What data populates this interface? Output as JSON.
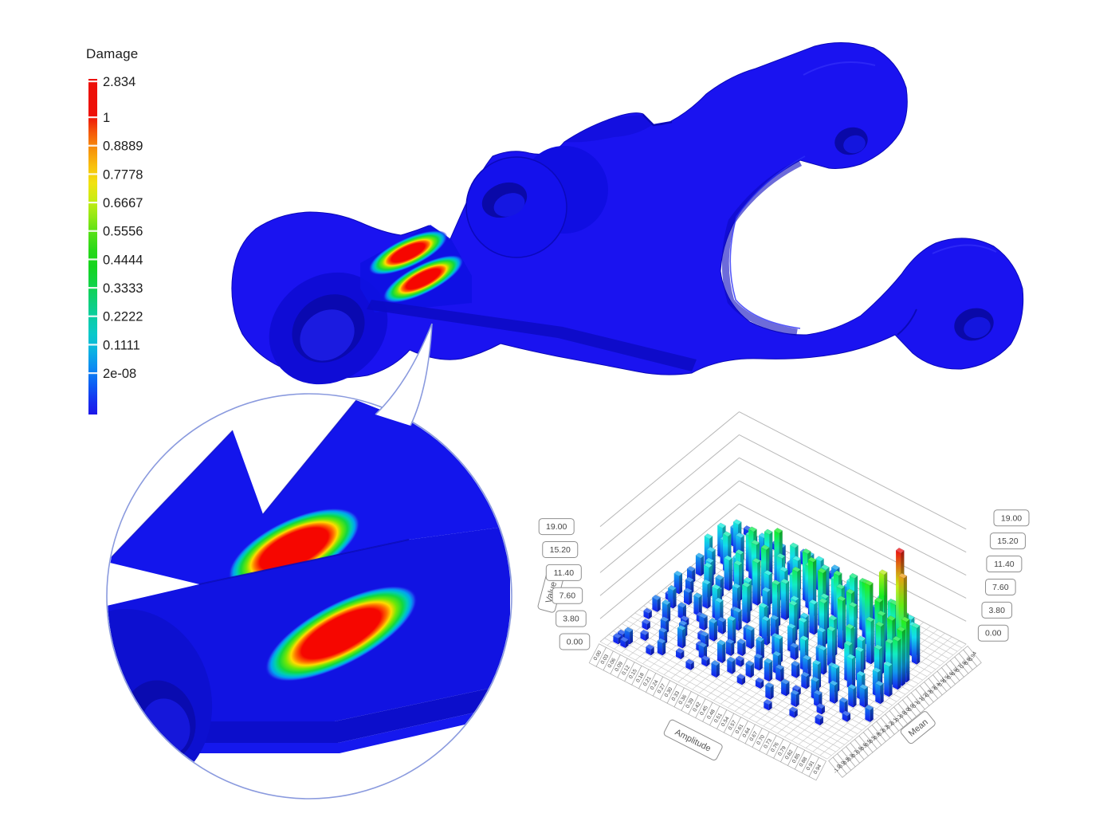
{
  "app": {
    "background": "#ffffff",
    "description_visible_elements": "FEA fatigue damage result: colorbar legend, 3D control-arm model with damage hotspots, circular zoom callout, 3D rainflow histogram"
  },
  "legend": {
    "title": "Damage",
    "ticks": [
      "2.834",
      "1",
      "0.8889",
      "0.7778",
      "0.6667",
      "0.5556",
      "0.4444",
      "0.3333",
      "0.2222",
      "0.1111",
      "2e-08"
    ],
    "gradient_stops": [
      [
        "0.00",
        "#ec1008"
      ],
      [
        "0.11",
        "#ee1008"
      ],
      [
        "0.16",
        "#f55a09"
      ],
      [
        "0.21",
        "#f7920a"
      ],
      [
        "0.26",
        "#f8c00d"
      ],
      [
        "0.31",
        "#f2e210"
      ],
      [
        "0.36",
        "#c9ec12"
      ],
      [
        "0.41",
        "#93e814"
      ],
      [
        "0.46",
        "#54e016"
      ],
      [
        "0.51",
        "#28d818"
      ],
      [
        "0.56",
        "#14d41e"
      ],
      [
        "0.61",
        "#12d345"
      ],
      [
        "0.66",
        "#0ed077"
      ],
      [
        "0.71",
        "#0bcda4"
      ],
      [
        "0.76",
        "#09c9c9"
      ],
      [
        "0.81",
        "#0ab2e2"
      ],
      [
        "0.86",
        "#0b8cf2"
      ],
      [
        "0.91",
        "#0c5ef4"
      ],
      [
        "0.96",
        "#1530f0"
      ],
      [
        "1.00",
        "#1d16e8"
      ]
    ]
  },
  "model": {
    "body_color": "#1a13f0",
    "shade_color": "#0d0bc4",
    "hotspot_core_color": "#f60600"
  },
  "callout": {
    "border_color": "#8a9ade"
  },
  "chart_data": {
    "type": "bar",
    "subtype": "3d-histogram",
    "title": "",
    "xlabel": "Amplitude",
    "ylabel": "Mean",
    "zlabel": "Value",
    "z_ticks": [
      "0.00",
      "3.80",
      "7.60",
      "11.40",
      "15.20",
      "19.00"
    ],
    "z_range": [
      0,
      19
    ],
    "x_ticks": [
      "0.00",
      "0.03",
      "0.06",
      "0.09",
      "0.12",
      "0.15",
      "0.18",
      "0.21",
      "0.24",
      "0.27",
      "0.30",
      "0.33",
      "0.36",
      "0.39",
      "0.42",
      "0.45",
      "0.48",
      "0.51",
      "0.54",
      "0.57",
      "0.61",
      "0.64",
      "0.67",
      "0.70",
      "0.73",
      "0.76",
      "0.79",
      "0.82",
      "0.85",
      "0.88",
      "0.91",
      "0.94"
    ],
    "y_first_tick": "-1.00",
    "y_ticks_estimated": true,
    "y_ticks": [
      "-1.00",
      "-0.94",
      "-0.87",
      "-0.81",
      "-0.75",
      "-0.69",
      "-0.62",
      "-0.56",
      "-0.50",
      "-0.44",
      "-0.37",
      "-0.31",
      "-0.25",
      "-0.19",
      "-0.12",
      "-0.06",
      "0.00",
      "0.06",
      "0.13",
      "0.19",
      "0.25",
      "0.31",
      "0.38",
      "0.44",
      "0.50",
      "0.56",
      "0.63",
      "0.69",
      "0.75",
      "0.81",
      "0.88",
      "0.94"
    ],
    "values_estimated": true,
    "matrix_encoding": "rows = Mean bins front(-1.00) to back; chars per Amplitude bin: '.'=0, '1'-'9'=1-9, 'A'-'J'=10-19 (Value)",
    "height_matrix": [
      "................................",
      ".11.............................",
      ".12..1..........................",
      "......2...1..........1..........",
      "...1....1....2..........1.......",
      ".....2.....1....1...2......1....",
      "..1....3..2...2...1....2........",
      "....2....1..3...2....2....1.....",
      ".1....2..2....1...3...1..2...1..",
      "...3....1...2...2..2....3...2...",
      ".2...1...3...2....3...2...3....2",
      "....2..2...4...3....2..4....3...",
      "..3...1..2...3...4...3...4...3..",
      ".1...3..4...2...3...5...3...4...",
      "...2...5..3...4...2...4...5...3.",
      ".3...4...2...5...4...3...6...4..",
      "..2...3...6...3...5...6...5...5.",
      "....5...4...3...6...4...7...6...",
      ".2...3...5...7...4...6...5...78.",
      "...4...6...4...5...7...5...8..9.",
      ".3...5...7...6...5...8...7..9.A.",
      "..4...6...5...8...6...7...8..G..",
      ".5...4...8...6...9...8...9..J...",
      "...6...7...5...9...7...A.D..8...",
      "..4...8...6...7...8...9...8..6..",
      ".5...6...9...8...6...8...7..5...",
      "...4...7...5...6...7...6...5....",
      "..5...3...6...4...5...4...3.....",
      ".3...4...2...5...3...2...2......",
      "...2...3...4...2...2...1........",
      "..1...2...1...3...1.............",
      ".1...1...2...1.................."
    ],
    "colormap": "rainbow blue(0) -> cyan -> green -> yellow -> orange -> red(19), bars graded vertically",
    "legend_position": "none",
    "grid": true
  }
}
